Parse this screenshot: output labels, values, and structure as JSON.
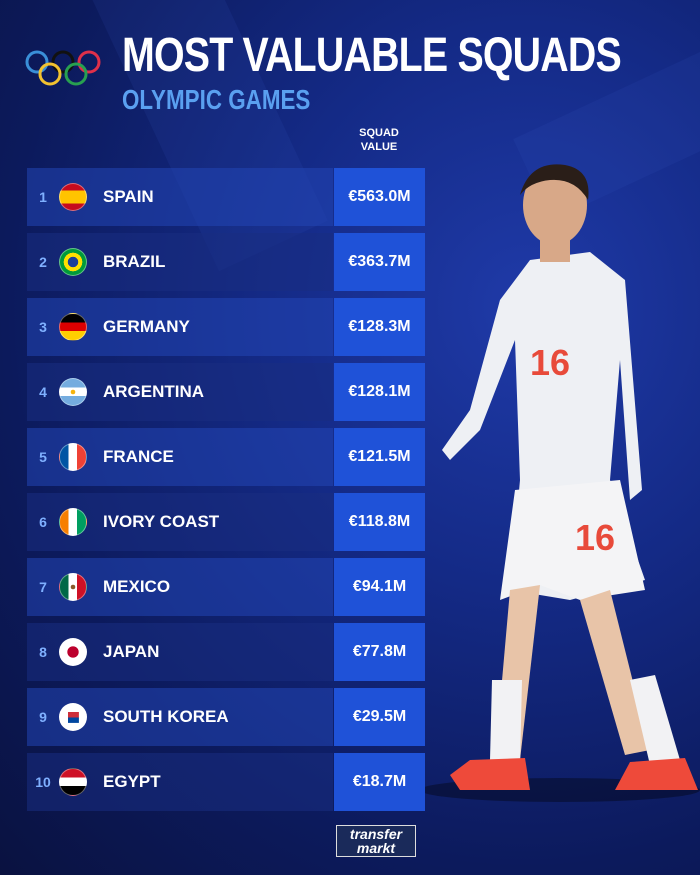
{
  "header": {
    "title": "MOST VALUABLE SQUADS",
    "subtitle": "OLYMPIC GAMES",
    "column_header_line1": "SQUAD",
    "column_header_line2": "VALUE"
  },
  "rows": [
    {
      "rank": "1",
      "country": "SPAIN",
      "flag": "spain-flag",
      "value": "€563.0M"
    },
    {
      "rank": "2",
      "country": "BRAZIL",
      "flag": "brazil-flag",
      "value": "€363.7M"
    },
    {
      "rank": "3",
      "country": "GERMANY",
      "flag": "germany-flag",
      "value": "€128.3M"
    },
    {
      "rank": "4",
      "country": "ARGENTINA",
      "flag": "argentina-flag",
      "value": "€128.1M"
    },
    {
      "rank": "5",
      "country": "FRANCE",
      "flag": "france-flag",
      "value": "€121.5M"
    },
    {
      "rank": "6",
      "country": "IVORY COAST",
      "flag": "ivory-coast-flag",
      "value": "€118.8M"
    },
    {
      "rank": "7",
      "country": "MEXICO",
      "flag": "mexico-flag",
      "value": "€94.1M"
    },
    {
      "rank": "8",
      "country": "JAPAN",
      "flag": "japan-flag",
      "value": "€77.8M"
    },
    {
      "rank": "9",
      "country": "SOUTH KOREA",
      "flag": "south-korea-flag",
      "value": "€29.5M"
    },
    {
      "rank": "10",
      "country": "EGYPT",
      "flag": "egypt-flag",
      "value": "€18.7M"
    }
  ],
  "footer": {
    "logo_line1": "transfer",
    "logo_line2": "markt"
  },
  "colors": {
    "value_box": "#1f52d8",
    "subtitle": "#5aa0f0",
    "background": "#142a86"
  }
}
